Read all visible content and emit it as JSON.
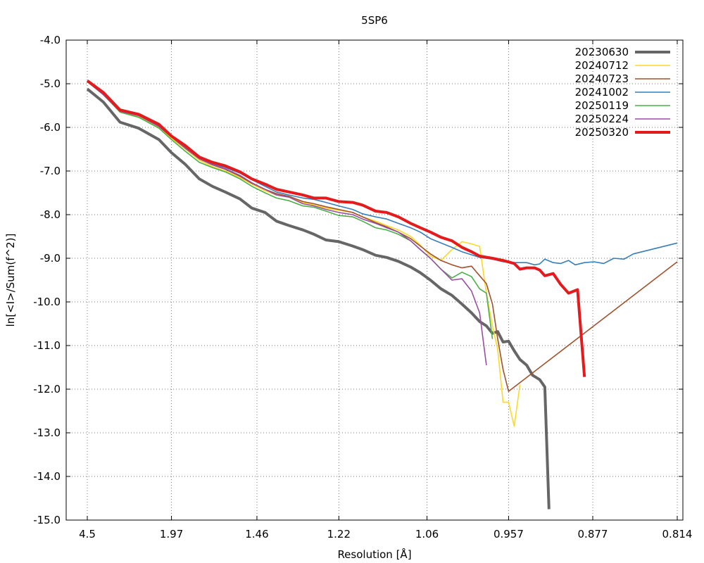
{
  "chart_data": {
    "type": "line",
    "title": "5SP6",
    "xlabel": "Resolution [Å]",
    "ylabel": "ln[<I>/Sum(f^2)]",
    "x_scale": "inverse-square",
    "xlim": [
      4.5,
      0.814
    ],
    "ylim": [
      -15.0,
      -4.0
    ],
    "grid": true,
    "legend_position": "top-right",
    "x_ticks": [
      {
        "value": 4.5,
        "label": "4.5"
      },
      {
        "value": 1.97,
        "label": "1.97"
      },
      {
        "value": 1.46,
        "label": "1.46"
      },
      {
        "value": 1.22,
        "label": "1.22"
      },
      {
        "value": 1.06,
        "label": "1.06"
      },
      {
        "value": 0.957,
        "label": "0.957"
      },
      {
        "value": 0.877,
        "label": "0.877"
      },
      {
        "value": 0.814,
        "label": "0.814"
      }
    ],
    "y_ticks": [
      {
        "value": -4.0,
        "label": "-4.0"
      },
      {
        "value": -5.0,
        "label": "-5.0"
      },
      {
        "value": -6.0,
        "label": "-6.0"
      },
      {
        "value": -7.0,
        "label": "-7.0"
      },
      {
        "value": -8.0,
        "label": "-8.0"
      },
      {
        "value": -9.0,
        "label": "-9.0"
      },
      {
        "value": -10.0,
        "label": "-10.0"
      },
      {
        "value": -11.0,
        "label": "-11.0"
      },
      {
        "value": -12.0,
        "label": "-12.0"
      },
      {
        "value": -13.0,
        "label": "-13.0"
      },
      {
        "value": -14.0,
        "label": "-14.0"
      },
      {
        "value": -15.0,
        "label": "-15.0"
      }
    ],
    "series": [
      {
        "name": "20230630",
        "color": "#666666",
        "width": 4,
        "points": [
          [
            4.5,
            -5.12
          ],
          [
            3.35,
            -5.42
          ],
          [
            2.77,
            -5.88
          ],
          [
            2.38,
            -6.02
          ],
          [
            2.1,
            -6.28
          ],
          [
            1.97,
            -6.58
          ],
          [
            1.85,
            -6.85
          ],
          [
            1.75,
            -7.18
          ],
          [
            1.67,
            -7.35
          ],
          [
            1.6,
            -7.48
          ],
          [
            1.53,
            -7.64
          ],
          [
            1.48,
            -7.85
          ],
          [
            1.43,
            -7.95
          ],
          [
            1.39,
            -8.15
          ],
          [
            1.35,
            -8.25
          ],
          [
            1.31,
            -8.35
          ],
          [
            1.28,
            -8.45
          ],
          [
            1.25,
            -8.58
          ],
          [
            1.22,
            -8.62
          ],
          [
            1.19,
            -8.72
          ],
          [
            1.17,
            -8.8
          ],
          [
            1.145,
            -8.93
          ],
          [
            1.125,
            -8.98
          ],
          [
            1.105,
            -9.07
          ],
          [
            1.085,
            -9.2
          ],
          [
            1.07,
            -9.33
          ],
          [
            1.055,
            -9.5
          ],
          [
            1.04,
            -9.7
          ],
          [
            1.025,
            -9.85
          ],
          [
            1.012,
            -10.05
          ],
          [
            1.0,
            -10.25
          ],
          [
            0.99,
            -10.45
          ],
          [
            0.982,
            -10.55
          ],
          [
            0.975,
            -10.72
          ],
          [
            0.969,
            -10.68
          ],
          [
            0.963,
            -10.92
          ],
          [
            0.957,
            -10.9
          ],
          [
            0.951,
            -11.12
          ],
          [
            0.945,
            -11.32
          ],
          [
            0.938,
            -11.45
          ],
          [
            0.932,
            -11.68
          ],
          [
            0.925,
            -11.78
          ],
          [
            0.92,
            -11.95
          ],
          [
            0.916,
            -14.75
          ]
        ]
      },
      {
        "name": "20240712",
        "color": "#fbd927",
        "width": 1.6,
        "points": [
          [
            4.5,
            -4.95
          ],
          [
            3.35,
            -5.25
          ],
          [
            2.77,
            -5.65
          ],
          [
            2.38,
            -5.75
          ],
          [
            2.1,
            -6.0
          ],
          [
            1.97,
            -6.25
          ],
          [
            1.85,
            -6.5
          ],
          [
            1.75,
            -6.75
          ],
          [
            1.67,
            -6.9
          ],
          [
            1.6,
            -7.0
          ],
          [
            1.53,
            -7.15
          ],
          [
            1.48,
            -7.3
          ],
          [
            1.43,
            -7.45
          ],
          [
            1.39,
            -7.55
          ],
          [
            1.35,
            -7.6
          ],
          [
            1.31,
            -7.72
          ],
          [
            1.28,
            -7.78
          ],
          [
            1.25,
            -7.85
          ],
          [
            1.22,
            -7.9
          ],
          [
            1.19,
            -7.95
          ],
          [
            1.17,
            -8.05
          ],
          [
            1.145,
            -8.15
          ],
          [
            1.125,
            -8.25
          ],
          [
            1.105,
            -8.35
          ],
          [
            1.085,
            -8.5
          ],
          [
            1.07,
            -8.7
          ],
          [
            1.055,
            -8.95
          ],
          [
            1.04,
            -9.05
          ],
          [
            1.025,
            -8.8
          ],
          [
            1.012,
            -8.62
          ],
          [
            1.0,
            -8.67
          ],
          [
            0.99,
            -8.73
          ],
          [
            0.982,
            -9.8
          ],
          [
            0.975,
            -10.55
          ],
          [
            0.969,
            -11.1
          ],
          [
            0.963,
            -12.3
          ],
          [
            0.957,
            -12.3
          ],
          [
            0.951,
            -12.85
          ],
          [
            0.945,
            -11.9
          ]
        ]
      },
      {
        "name": "20240723",
        "color": "#a0522d",
        "width": 1.6,
        "points": [
          [
            4.5,
            -4.95
          ],
          [
            3.35,
            -5.25
          ],
          [
            2.77,
            -5.63
          ],
          [
            2.38,
            -5.72
          ],
          [
            2.1,
            -5.98
          ],
          [
            1.97,
            -6.22
          ],
          [
            1.85,
            -6.47
          ],
          [
            1.75,
            -6.72
          ],
          [
            1.67,
            -6.86
          ],
          [
            1.6,
            -6.96
          ],
          [
            1.53,
            -7.12
          ],
          [
            1.48,
            -7.28
          ],
          [
            1.43,
            -7.42
          ],
          [
            1.39,
            -7.52
          ],
          [
            1.35,
            -7.58
          ],
          [
            1.31,
            -7.7
          ],
          [
            1.28,
            -7.75
          ],
          [
            1.25,
            -7.82
          ],
          [
            1.22,
            -7.88
          ],
          [
            1.19,
            -7.95
          ],
          [
            1.17,
            -8.05
          ],
          [
            1.145,
            -8.18
          ],
          [
            1.125,
            -8.28
          ],
          [
            1.105,
            -8.4
          ],
          [
            1.085,
            -8.55
          ],
          [
            1.07,
            -8.72
          ],
          [
            1.055,
            -8.9
          ],
          [
            1.04,
            -9.05
          ],
          [
            1.025,
            -9.15
          ],
          [
            1.012,
            -9.22
          ],
          [
            1.0,
            -9.18
          ],
          [
            0.99,
            -9.4
          ],
          [
            0.982,
            -9.58
          ],
          [
            0.975,
            -10.05
          ],
          [
            0.969,
            -10.85
          ],
          [
            0.963,
            -11.55
          ],
          [
            0.957,
            -12.05
          ],
          [
            0.814,
            -9.08
          ]
        ]
      },
      {
        "name": "20241002",
        "color": "#377eb8",
        "width": 1.6,
        "points": [
          [
            4.5,
            -4.93
          ],
          [
            3.35,
            -5.22
          ],
          [
            2.77,
            -5.62
          ],
          [
            2.38,
            -5.72
          ],
          [
            2.1,
            -5.95
          ],
          [
            1.97,
            -6.2
          ],
          [
            1.85,
            -6.45
          ],
          [
            1.75,
            -6.7
          ],
          [
            1.67,
            -6.83
          ],
          [
            1.6,
            -6.92
          ],
          [
            1.53,
            -7.05
          ],
          [
            1.48,
            -7.2
          ],
          [
            1.43,
            -7.35
          ],
          [
            1.39,
            -7.48
          ],
          [
            1.35,
            -7.55
          ],
          [
            1.31,
            -7.62
          ],
          [
            1.28,
            -7.65
          ],
          [
            1.25,
            -7.72
          ],
          [
            1.22,
            -7.8
          ],
          [
            1.19,
            -7.88
          ],
          [
            1.17,
            -7.98
          ],
          [
            1.145,
            -8.05
          ],
          [
            1.125,
            -8.1
          ],
          [
            1.105,
            -8.2
          ],
          [
            1.085,
            -8.3
          ],
          [
            1.07,
            -8.4
          ],
          [
            1.055,
            -8.55
          ],
          [
            1.04,
            -8.65
          ],
          [
            1.025,
            -8.75
          ],
          [
            1.012,
            -8.85
          ],
          [
            1.0,
            -8.92
          ],
          [
            0.99,
            -8.98
          ],
          [
            0.975,
            -9.02
          ],
          [
            0.963,
            -9.08
          ],
          [
            0.951,
            -9.1
          ],
          [
            0.938,
            -9.1
          ],
          [
            0.93,
            -9.15
          ],
          [
            0.925,
            -9.13
          ],
          [
            0.92,
            -9.02
          ],
          [
            0.912,
            -9.1
          ],
          [
            0.905,
            -9.12
          ],
          [
            0.898,
            -9.05
          ],
          [
            0.892,
            -9.15
          ],
          [
            0.884,
            -9.1
          ],
          [
            0.876,
            -9.08
          ],
          [
            0.868,
            -9.12
          ],
          [
            0.86,
            -9.0
          ],
          [
            0.852,
            -9.02
          ],
          [
            0.845,
            -8.9
          ],
          [
            0.814,
            -8.65
          ]
        ]
      },
      {
        "name": "20250119",
        "color": "#4daf4a",
        "width": 1.6,
        "points": [
          [
            4.5,
            -4.95
          ],
          [
            3.35,
            -5.25
          ],
          [
            2.77,
            -5.65
          ],
          [
            2.38,
            -5.77
          ],
          [
            2.1,
            -6.02
          ],
          [
            1.97,
            -6.28
          ],
          [
            1.85,
            -6.55
          ],
          [
            1.75,
            -6.8
          ],
          [
            1.67,
            -6.92
          ],
          [
            1.6,
            -7.02
          ],
          [
            1.53,
            -7.18
          ],
          [
            1.48,
            -7.35
          ],
          [
            1.43,
            -7.5
          ],
          [
            1.39,
            -7.62
          ],
          [
            1.35,
            -7.68
          ],
          [
            1.31,
            -7.8
          ],
          [
            1.28,
            -7.83
          ],
          [
            1.25,
            -7.92
          ],
          [
            1.22,
            -8.02
          ],
          [
            1.19,
            -8.05
          ],
          [
            1.17,
            -8.15
          ],
          [
            1.145,
            -8.3
          ],
          [
            1.125,
            -8.35
          ],
          [
            1.105,
            -8.45
          ],
          [
            1.085,
            -8.6
          ],
          [
            1.07,
            -8.8
          ],
          [
            1.055,
            -9.0
          ],
          [
            1.04,
            -9.25
          ],
          [
            1.025,
            -9.45
          ],
          [
            1.012,
            -9.32
          ],
          [
            1.0,
            -9.42
          ],
          [
            0.99,
            -9.7
          ],
          [
            0.982,
            -9.8
          ],
          [
            0.975,
            -10.85
          ]
        ]
      },
      {
        "name": "20250224",
        "color": "#984ea3",
        "width": 1.6,
        "points": [
          [
            4.5,
            -4.95
          ],
          [
            3.35,
            -5.25
          ],
          [
            2.77,
            -5.63
          ],
          [
            2.38,
            -5.73
          ],
          [
            2.1,
            -5.98
          ],
          [
            1.97,
            -6.22
          ],
          [
            1.85,
            -6.48
          ],
          [
            1.75,
            -6.72
          ],
          [
            1.67,
            -6.85
          ],
          [
            1.6,
            -6.95
          ],
          [
            1.53,
            -7.1
          ],
          [
            1.48,
            -7.27
          ],
          [
            1.43,
            -7.42
          ],
          [
            1.39,
            -7.55
          ],
          [
            1.35,
            -7.6
          ],
          [
            1.31,
            -7.75
          ],
          [
            1.28,
            -7.8
          ],
          [
            1.25,
            -7.88
          ],
          [
            1.22,
            -7.95
          ],
          [
            1.19,
            -8.0
          ],
          [
            1.17,
            -8.1
          ],
          [
            1.145,
            -8.2
          ],
          [
            1.125,
            -8.3
          ],
          [
            1.105,
            -8.4
          ],
          [
            1.085,
            -8.6
          ],
          [
            1.07,
            -8.8
          ],
          [
            1.055,
            -9.0
          ],
          [
            1.04,
            -9.25
          ],
          [
            1.025,
            -9.5
          ],
          [
            1.012,
            -9.47
          ],
          [
            1.0,
            -9.75
          ],
          [
            0.99,
            -10.25
          ],
          [
            0.982,
            -11.45
          ]
        ]
      },
      {
        "name": "20250320",
        "color": "#e41a1c",
        "width": 4,
        "points": [
          [
            4.5,
            -4.93
          ],
          [
            3.35,
            -5.2
          ],
          [
            2.77,
            -5.6
          ],
          [
            2.38,
            -5.7
          ],
          [
            2.1,
            -5.93
          ],
          [
            1.97,
            -6.2
          ],
          [
            1.85,
            -6.42
          ],
          [
            1.75,
            -6.68
          ],
          [
            1.67,
            -6.8
          ],
          [
            1.6,
            -6.88
          ],
          [
            1.53,
            -7.02
          ],
          [
            1.48,
            -7.18
          ],
          [
            1.43,
            -7.3
          ],
          [
            1.39,
            -7.42
          ],
          [
            1.35,
            -7.48
          ],
          [
            1.31,
            -7.55
          ],
          [
            1.28,
            -7.62
          ],
          [
            1.25,
            -7.62
          ],
          [
            1.22,
            -7.7
          ],
          [
            1.19,
            -7.72
          ],
          [
            1.17,
            -7.78
          ],
          [
            1.145,
            -7.92
          ],
          [
            1.125,
            -7.95
          ],
          [
            1.105,
            -8.05
          ],
          [
            1.085,
            -8.2
          ],
          [
            1.07,
            -8.3
          ],
          [
            1.055,
            -8.4
          ],
          [
            1.04,
            -8.52
          ],
          [
            1.025,
            -8.6
          ],
          [
            1.012,
            -8.75
          ],
          [
            1.0,
            -8.85
          ],
          [
            0.99,
            -8.95
          ],
          [
            0.975,
            -9.0
          ],
          [
            0.963,
            -9.05
          ],
          [
            0.951,
            -9.12
          ],
          [
            0.945,
            -9.25
          ],
          [
            0.938,
            -9.22
          ],
          [
            0.93,
            -9.22
          ],
          [
            0.925,
            -9.27
          ],
          [
            0.92,
            -9.4
          ],
          [
            0.912,
            -9.35
          ],
          [
            0.905,
            -9.6
          ],
          [
            0.898,
            -9.8
          ],
          [
            0.89,
            -9.72
          ],
          [
            0.884,
            -11.72
          ]
        ]
      }
    ]
  }
}
